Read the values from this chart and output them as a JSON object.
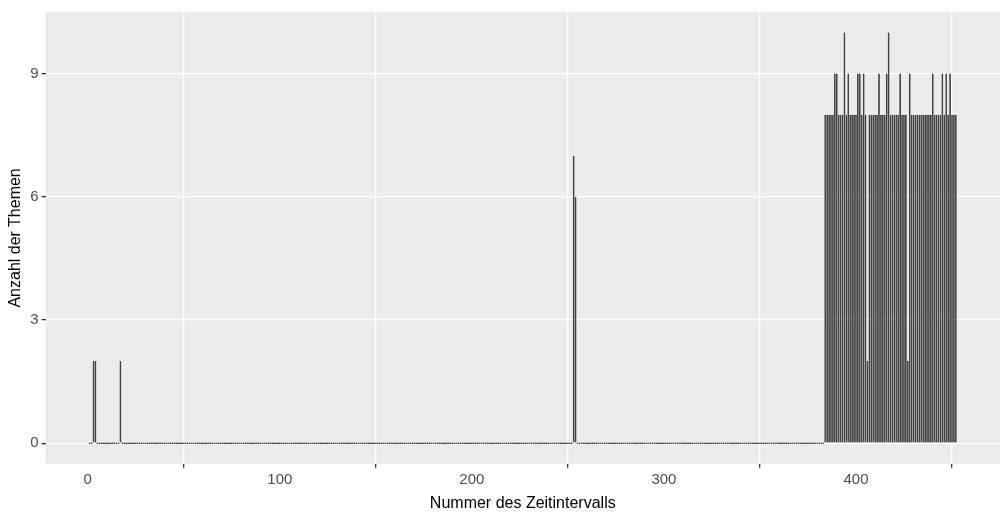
{
  "chart_data": {
    "type": "bar",
    "xlabel": "Nummer des Zeitintervalls",
    "ylabel": "Anzahl der Themen",
    "color": "#1a1a1a",
    "x": [
      1,
      2,
      3,
      4,
      5,
      6,
      7,
      8,
      9,
      10,
      11,
      12,
      13,
      14,
      15,
      16,
      17,
      18,
      19,
      20,
      21,
      22,
      23,
      24,
      25,
      26,
      27,
      28,
      29,
      30,
      31,
      32,
      33,
      34,
      35,
      36,
      37,
      38,
      39,
      40,
      41,
      42,
      43,
      44,
      45,
      46,
      47,
      48,
      49,
      50,
      51,
      52,
      53,
      54,
      55,
      56,
      57,
      58,
      59,
      60,
      61,
      62,
      63,
      64,
      65,
      66,
      67,
      68,
      69,
      70,
      71,
      72,
      73,
      74,
      75,
      76,
      77,
      78,
      79,
      80,
      81,
      82,
      83,
      84,
      85,
      86,
      87,
      88,
      89,
      90,
      91,
      92,
      93,
      94,
      95,
      96,
      97,
      98,
      99,
      100,
      101,
      102,
      103,
      104,
      105,
      106,
      107,
      108,
      109,
      110,
      111,
      112,
      113,
      114,
      115,
      116,
      117,
      118,
      119,
      120,
      121,
      122,
      123,
      124,
      125,
      126,
      127,
      128,
      129,
      130,
      131,
      132,
      133,
      134,
      135,
      136,
      137,
      138,
      139,
      140,
      141,
      142,
      143,
      144,
      145,
      146,
      147,
      148,
      149,
      150,
      151,
      152,
      153,
      154,
      155,
      156,
      157,
      158,
      159,
      160,
      161,
      162,
      163,
      164,
      165,
      166,
      167,
      168,
      169,
      170,
      171,
      172,
      173,
      174,
      175,
      176,
      177,
      178,
      179,
      180,
      181,
      182,
      183,
      184,
      185,
      186,
      187,
      188,
      189,
      190,
      191,
      192,
      193,
      194,
      195,
      196,
      197,
      198,
      199,
      200,
      201,
      202,
      203,
      204,
      205,
      206,
      207,
      208,
      209,
      210,
      211,
      212,
      213,
      214,
      215,
      216,
      217,
      218,
      219,
      220,
      221,
      222,
      223,
      224,
      225,
      226,
      227,
      228,
      229,
      230,
      231,
      232,
      233,
      234,
      235,
      236,
      237,
      238,
      239,
      240,
      241,
      242,
      243,
      244,
      245,
      246,
      247,
      248,
      249,
      250,
      251,
      252,
      253,
      254,
      255,
      256,
      257,
      258,
      259,
      260,
      261,
      262,
      263,
      264,
      265,
      266,
      267,
      268,
      269,
      270,
      271,
      272,
      273,
      274,
      275,
      276,
      277,
      278,
      279,
      280,
      281,
      282,
      283,
      284,
      285,
      286,
      287,
      288,
      289,
      290,
      291,
      292,
      293,
      294,
      295,
      296,
      297,
      298,
      299,
      300,
      301,
      302,
      303,
      304,
      305,
      306,
      307,
      308,
      309,
      310,
      311,
      312,
      313,
      314,
      315,
      316,
      317,
      318,
      319,
      320,
      321,
      322,
      323,
      324,
      325,
      326,
      327,
      328,
      329,
      330,
      331,
      332,
      333,
      334,
      335,
      336,
      337,
      338,
      339,
      340,
      341,
      342,
      343,
      344,
      345,
      346,
      347,
      348,
      349,
      350,
      351,
      352,
      353,
      354,
      355,
      356,
      357,
      358,
      359,
      360,
      361,
      362,
      363,
      364,
      365,
      366,
      367,
      368,
      369,
      370,
      371,
      372,
      373,
      374,
      375,
      376,
      377,
      378,
      379,
      380,
      381,
      382,
      383,
      384,
      385,
      386,
      387,
      388,
      389,
      390,
      391,
      392,
      393,
      394,
      395,
      396,
      397,
      398,
      399,
      400,
      401,
      402,
      403,
      404,
      405,
      406,
      407,
      408,
      409,
      410,
      411,
      412,
      413,
      414,
      415,
      416,
      417,
      418,
      419,
      420,
      421,
      422,
      423,
      424,
      425,
      426,
      427,
      428,
      429,
      430,
      431,
      432,
      433,
      434,
      435,
      436,
      437,
      438,
      439,
      440,
      441,
      442,
      443,
      444,
      445,
      446,
      447,
      448,
      449,
      450,
      451,
      452
    ],
    "values": [
      0,
      0,
      2,
      2,
      0,
      0,
      0,
      0,
      0,
      0,
      0,
      0,
      0,
      0,
      0,
      0,
      2,
      0,
      0,
      0,
      0,
      0,
      0,
      0,
      0,
      0,
      0,
      0,
      0,
      0,
      0,
      0,
      0,
      0,
      0,
      0,
      0,
      0,
      0,
      0,
      0,
      0,
      0,
      0,
      0,
      0,
      0,
      0,
      0,
      0,
      0,
      0,
      0,
      0,
      0,
      0,
      0,
      0,
      0,
      0,
      0,
      0,
      0,
      0,
      0,
      0,
      0,
      0,
      0,
      0,
      0,
      0,
      0,
      0,
      0,
      0,
      0,
      0,
      0,
      0,
      0,
      0,
      0,
      0,
      0,
      0,
      0,
      0,
      0,
      0,
      0,
      0,
      0,
      0,
      0,
      0,
      0,
      0,
      0,
      0,
      0,
      0,
      0,
      0,
      0,
      0,
      0,
      0,
      0,
      0,
      0,
      0,
      0,
      0,
      0,
      0,
      0,
      0,
      0,
      0,
      0,
      0,
      0,
      0,
      0,
      0,
      0,
      0,
      0,
      0,
      0,
      0,
      0,
      0,
      0,
      0,
      0,
      0,
      0,
      0,
      0,
      0,
      0,
      0,
      0,
      0,
      0,
      0,
      0,
      0,
      0,
      0,
      0,
      0,
      0,
      0,
      0,
      0,
      0,
      0,
      0,
      0,
      0,
      0,
      0,
      0,
      0,
      0,
      0,
      0,
      0,
      0,
      0,
      0,
      0,
      0,
      0,
      0,
      0,
      0,
      0,
      0,
      0,
      0,
      0,
      0,
      0,
      0,
      0,
      0,
      0,
      0,
      0,
      0,
      0,
      0,
      0,
      0,
      0,
      0,
      0,
      0,
      0,
      0,
      0,
      0,
      0,
      0,
      0,
      0,
      0,
      0,
      0,
      0,
      0,
      0,
      0,
      0,
      0,
      0,
      0,
      0,
      0,
      0,
      0,
      0,
      0,
      0,
      0,
      0,
      0,
      0,
      0,
      0,
      0,
      0,
      0,
      0,
      0,
      0,
      0,
      0,
      0,
      0,
      0,
      0,
      0,
      0,
      0,
      0,
      0,
      0,
      7,
      6,
      0,
      0,
      0,
      0,
      0,
      0,
      0,
      0,
      0,
      0,
      0,
      0,
      0,
      0,
      0,
      0,
      0,
      0,
      0,
      0,
      0,
      0,
      0,
      0,
      0,
      0,
      0,
      0,
      0,
      0,
      0,
      0,
      0,
      0,
      0,
      0,
      0,
      0,
      0,
      0,
      0,
      0,
      0,
      0,
      0,
      0,
      0,
      0,
      0,
      0,
      0,
      0,
      0,
      0,
      0,
      0,
      0,
      0,
      0,
      0,
      0,
      0,
      0,
      0,
      0,
      0,
      0,
      0,
      0,
      0,
      0,
      0,
      0,
      0,
      0,
      0,
      0,
      0,
      0,
      0,
      0,
      0,
      0,
      0,
      0,
      0,
      0,
      0,
      0,
      0,
      0,
      0,
      0,
      0,
      0,
      0,
      0,
      0,
      0,
      0,
      0,
      0,
      0,
      0,
      0,
      0,
      0,
      0,
      0,
      0,
      0,
      0,
      0,
      0,
      0,
      0,
      0,
      0,
      0,
      0,
      0,
      0,
      0,
      0,
      0,
      0,
      0,
      0,
      0,
      8,
      8,
      8,
      8,
      8,
      9,
      9,
      8,
      8,
      8,
      10,
      8,
      9,
      8,
      8,
      8,
      8,
      9,
      9,
      8,
      9,
      8,
      2,
      8,
      8,
      8,
      8,
      8,
      9,
      8,
      8,
      8,
      9,
      10,
      8,
      8,
      8,
      8,
      8,
      9,
      8,
      8,
      8,
      2,
      9,
      8,
      8,
      8,
      8,
      8,
      8,
      8,
      8,
      8,
      8,
      8,
      9,
      8,
      8,
      8,
      8,
      9,
      8,
      9,
      8,
      9,
      8,
      8,
      8
    ],
    "xlim": [
      -22,
      475
    ],
    "xticks": [
      0,
      100,
      200,
      300,
      400
    ],
    "ylim": [
      -0.5,
      10.5
    ],
    "yticks": [
      0,
      3,
      6,
      9
    ],
    "grid": true,
    "legend": false
  }
}
